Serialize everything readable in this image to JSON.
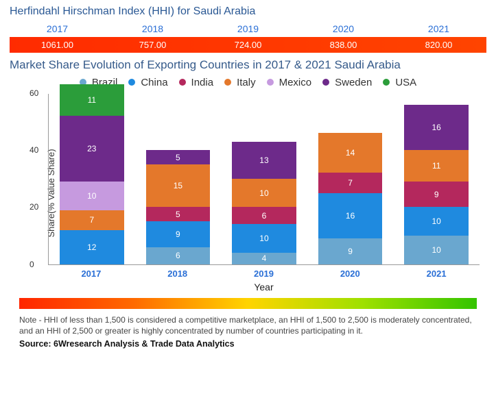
{
  "hhi": {
    "title": "Herfindahl Hirschman Index (HHI) for Saudi Arabia",
    "years": [
      "2017",
      "2018",
      "2019",
      "2020",
      "2021"
    ],
    "values": [
      "1061.00",
      "757.00",
      "724.00",
      "838.00",
      "820.00"
    ],
    "header_color": "#2a6fd6",
    "row_gradient": [
      "#ff2b00",
      "#ff4400"
    ]
  },
  "chart": {
    "title": "Market Share Evolution of Exporting Countries in 2017 & 2021 Saudi Arabia",
    "type": "stacked-bar",
    "ylabel": "Share(% Value Share)",
    "xlabel": "Year",
    "ylim": [
      0,
      60
    ],
    "ytick_step": 20,
    "label_fontsize": 13,
    "title_fontsize": 17,
    "background_color": "#ffffff",
    "series": [
      {
        "name": "Brazil",
        "color": "#6aa7cf"
      },
      {
        "name": "China",
        "color": "#1f8adf"
      },
      {
        "name": "India",
        "color": "#b4285d"
      },
      {
        "name": "Italy",
        "color": "#e4782b"
      },
      {
        "name": "Mexico",
        "color": "#c69adf"
      },
      {
        "name": "Sweden",
        "color": "#6d2a8a"
      },
      {
        "name": "USA",
        "color": "#2b9d3a"
      }
    ],
    "categories": [
      "2017",
      "2018",
      "2019",
      "2020",
      "2021"
    ],
    "stacks": [
      [
        {
          "series": "China",
          "value": 12
        },
        {
          "series": "Italy",
          "value": 7
        },
        {
          "series": "Mexico",
          "value": 10
        },
        {
          "series": "Sweden",
          "value": 23
        },
        {
          "series": "USA",
          "value": 11
        }
      ],
      [
        {
          "series": "Brazil",
          "value": 6
        },
        {
          "series": "China",
          "value": 9
        },
        {
          "series": "India",
          "value": 5
        },
        {
          "series": "Italy",
          "value": 15
        },
        {
          "series": "Sweden",
          "value": 5
        }
      ],
      [
        {
          "series": "Brazil",
          "value": 4
        },
        {
          "series": "China",
          "value": 10
        },
        {
          "series": "India",
          "value": 6
        },
        {
          "series": "Italy",
          "value": 10
        },
        {
          "series": "Sweden",
          "value": 13
        }
      ],
      [
        {
          "series": "Brazil",
          "value": 9
        },
        {
          "series": "China",
          "value": 16
        },
        {
          "series": "India",
          "value": 7
        },
        {
          "series": "Italy",
          "value": 14
        }
      ],
      [
        {
          "series": "Brazil",
          "value": 10
        },
        {
          "series": "China",
          "value": 10
        },
        {
          "series": "India",
          "value": 9
        },
        {
          "series": "Italy",
          "value": 11
        },
        {
          "series": "Sweden",
          "value": 16
        }
      ]
    ]
  },
  "gradient_bar": {
    "colors": [
      "#ff2600",
      "#ff6a00",
      "#ffd400",
      "#9fe000",
      "#34c400"
    ]
  },
  "note": "Note - HHI of less than 1,500 is considered a competitive marketplace, an HHI of 1,500 to 2,500 is moderately concentrated, and an HHI of 2,500 or greater is highly concentrated by number of countries participating in it.",
  "source": "Source: 6Wresearch Analysis & Trade Data Analytics"
}
